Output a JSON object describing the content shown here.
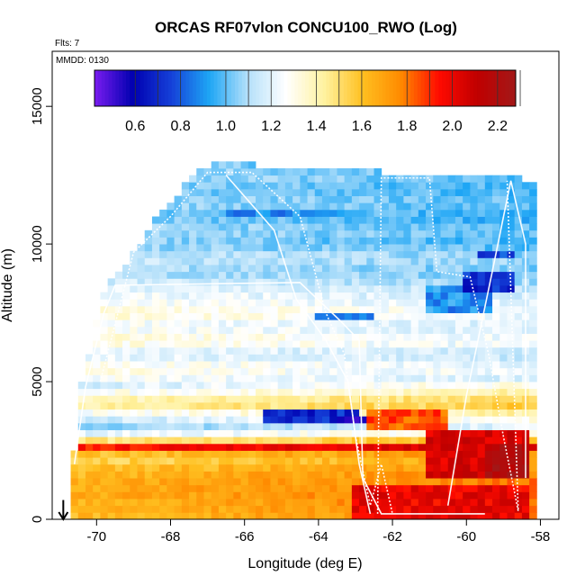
{
  "chart_data": {
    "type": "heatmap",
    "title": "ORCAS RF07vlon CONCU100_RWO (Log)",
    "flights_label": "Flts: 7",
    "date_label": "MMDD: 0130",
    "xlabel": "Longitude (deg E)",
    "ylabel": "Altitude (m)",
    "xlim": [
      -71.2,
      -57.5
    ],
    "ylim": [
      0,
      17000
    ],
    "x_ticks": [
      -70,
      -68,
      -66,
      -64,
      -62,
      -60,
      -58
    ],
    "x_tick_labels": [
      "-70",
      "-68",
      "-66",
      "-64",
      "-62",
      "-60",
      "-58"
    ],
    "y_ticks": [
      0,
      5000,
      10000,
      15000
    ],
    "y_tick_labels": [
      "0",
      "5000",
      "10000",
      "15000"
    ],
    "colorbar": {
      "range": [
        0.42,
        2.28
      ],
      "ticks": [
        0.6,
        0.8,
        1.0,
        1.2,
        1.4,
        1.6,
        1.8,
        2.0,
        2.2
      ],
      "tick_labels": [
        "0.6",
        "0.8",
        "1.0",
        "1.2",
        "1.4",
        "1.6",
        "1.8",
        "2.0",
        "2.2"
      ],
      "colors": [
        "#7a1cf0",
        "#0000b0",
        "#1540d8",
        "#1ea6f5",
        "#b4e0fa",
        "#ffffff",
        "#fff2a0",
        "#ffc020",
        "#ff8a00",
        "#ff0a00",
        "#c00000",
        "#a21818"
      ]
    },
    "cell_size": {
      "lon": 0.2,
      "alt": 250
    },
    "domain": {
      "alt_max_at_lon": [
        [
          -70.6,
          2500
        ],
        [
          -70.4,
          4800
        ],
        [
          -70.1,
          6500
        ],
        [
          -69.8,
          8200
        ],
        [
          -69.5,
          8700
        ],
        [
          -69.0,
          9600
        ],
        [
          -68.5,
          10600
        ],
        [
          -67.9,
          11600
        ],
        [
          -67.3,
          12500
        ],
        [
          -66.9,
          12800
        ],
        [
          -64.5,
          12700
        ],
        [
          -63.0,
          12600
        ],
        [
          -61.5,
          12400
        ],
        [
          -59.8,
          12400
        ],
        [
          -58.6,
          12300
        ],
        [
          -58.3,
          12200
        ]
      ],
      "alt_min_at_lon": [
        [
          -70.7,
          0
        ],
        [
          -58.2,
          0
        ]
      ],
      "lon_min": -70.7,
      "lon_max": -58.1
    },
    "profile": [
      {
        "alt": 0,
        "value": 1.7
      },
      {
        "alt": 500,
        "value": 1.72
      },
      {
        "alt": 1000,
        "value": 1.75
      },
      {
        "alt": 1500,
        "value": 1.72
      },
      {
        "alt": 2000,
        "value": 1.65
      },
      {
        "alt": 2300,
        "value": 1.55
      },
      {
        "alt": 2600,
        "value": 2.05
      },
      {
        "alt": 2900,
        "value": 1.5
      },
      {
        "alt": 3300,
        "value": 1.1
      },
      {
        "alt": 3800,
        "value": 1.3
      },
      {
        "alt": 4200,
        "value": 1.55
      },
      {
        "alt": 4600,
        "value": 1.35
      },
      {
        "alt": 5000,
        "value": 1.2
      },
      {
        "alt": 5500,
        "value": 1.28
      },
      {
        "alt": 6000,
        "value": 1.15
      },
      {
        "alt": 6500,
        "value": 1.3
      },
      {
        "alt": 7000,
        "value": 1.2
      },
      {
        "alt": 7500,
        "value": 1.3
      },
      {
        "alt": 8000,
        "value": 1.22
      },
      {
        "alt": 8500,
        "value": 1.15
      },
      {
        "alt": 9000,
        "value": 1.05
      },
      {
        "alt": 9500,
        "value": 1.12
      },
      {
        "alt": 10000,
        "value": 1.0
      },
      {
        "alt": 10500,
        "value": 1.05
      },
      {
        "alt": 11000,
        "value": 0.98
      },
      {
        "alt": 11500,
        "value": 1.05
      },
      {
        "alt": 12000,
        "value": 1.0
      },
      {
        "alt": 12500,
        "value": 1.05
      },
      {
        "alt": 13000,
        "value": 1.0
      }
    ],
    "anomalies": [
      {
        "lon_range": [
          -65.5,
          -62.8
        ],
        "alt_range": [
          3500,
          3900
        ],
        "value": 0.7
      },
      {
        "lon_range": [
          -63.5,
          -62.5
        ],
        "alt_range": [
          3400,
          3800
        ],
        "value": 0.55
      },
      {
        "lon_range": [
          -62.6,
          -60.5
        ],
        "alt_range": [
          3300,
          4000
        ],
        "value": 1.85
      },
      {
        "lon_range": [
          -61.0,
          -58.3
        ],
        "alt_range": [
          1500,
          3200
        ],
        "value": 2.05
      },
      {
        "lon_range": [
          -59.5,
          -58.3
        ],
        "alt_range": [
          1500,
          2800
        ],
        "value": 2.2
      },
      {
        "lon_range": [
          -63.0,
          -58.3
        ],
        "alt_range": [
          0,
          1200
        ],
        "value": 2.0
      },
      {
        "lon_range": [
          -61.0,
          -59.2
        ],
        "alt_range": [
          7500,
          8500
        ],
        "value": 0.9
      },
      {
        "lon_range": [
          -60.0,
          -58.6
        ],
        "alt_range": [
          8300,
          9000
        ],
        "value": 0.7
      },
      {
        "lon_range": [
          -59.6,
          -58.6
        ],
        "alt_range": [
          9500,
          9700
        ],
        "value": 0.75
      },
      {
        "lon_range": [
          -66.5,
          -63.3
        ],
        "alt_range": [
          10900,
          11300
        ],
        "value": 0.9
      },
      {
        "lon_range": [
          -64.0,
          -62.5
        ],
        "alt_range": [
          7200,
          7500
        ],
        "value": 0.85
      }
    ],
    "flight_tracks": [
      [
        [
          -70.6,
          2000
        ],
        [
          -70.3,
          4800
        ],
        [
          -69.8,
          7500
        ],
        [
          -69.5,
          8500
        ],
        [
          -64.5,
          8600
        ],
        [
          -63.4,
          7200
        ],
        [
          -62.9,
          6500
        ],
        [
          -62.8,
          1500
        ],
        [
          -62.3,
          200
        ],
        [
          -60.5,
          200
        ],
        [
          -59.5,
          200
        ]
      ],
      [
        [
          -69.9,
          5000
        ],
        [
          -69.0,
          9700
        ],
        [
          -68.0,
          11000
        ],
        [
          -67.0,
          12600
        ],
        [
          -65.8,
          12600
        ],
        [
          -64.5,
          11000
        ],
        [
          -63.8,
          7500
        ],
        [
          -63.3,
          6000
        ],
        [
          -63.0,
          3000
        ],
        [
          -62.6,
          500
        ],
        [
          -62.3,
          2000
        ],
        [
          -62.0,
          200
        ]
      ],
      [
        [
          -66.5,
          12500
        ],
        [
          -65.2,
          10500
        ],
        [
          -64.6,
          8000
        ],
        [
          -63.8,
          6500
        ],
        [
          -63.2,
          5000
        ],
        [
          -62.9,
          2000
        ],
        [
          -62.6,
          200
        ]
      ],
      [
        [
          -62.4,
          200
        ],
        [
          -62.3,
          12400
        ],
        [
          -61.0,
          12400
        ],
        [
          -60.8,
          9000
        ],
        [
          -59.9,
          8800
        ],
        [
          -59.4,
          6000
        ],
        [
          -59.0,
          3000
        ],
        [
          -58.6,
          300
        ],
        [
          -58.9,
          12300
        ]
      ],
      [
        [
          -60.5,
          500
        ],
        [
          -60.0,
          4500
        ],
        [
          -59.3,
          9000
        ],
        [
          -58.8,
          12300
        ],
        [
          -58.4,
          10000
        ],
        [
          -58.4,
          1500
        ]
      ]
    ],
    "marker": {
      "lon": -70.9,
      "alt_top": 700,
      "alt_bottom": 0
    }
  }
}
